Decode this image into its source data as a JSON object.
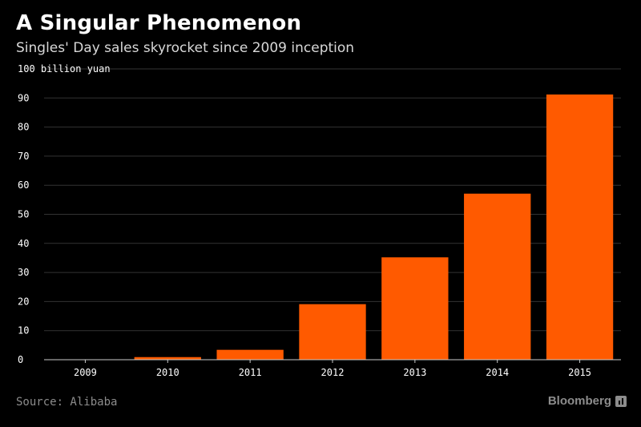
{
  "header": {
    "title": "A Singular Phenomenon",
    "subtitle": "Singles' Day sales skyrocket since 2009 inception"
  },
  "footer": {
    "source": "Source: Alibaba",
    "brand": "Bloomberg",
    "brand_icon": "bloomberg-chart-icon"
  },
  "colors": {
    "background": "#000000",
    "bar": "#ff5a00",
    "grid": "#333333",
    "axis": "#cccccc",
    "tick_text": "#ffffff"
  },
  "chart_data": {
    "type": "bar",
    "title": "A Singular Phenomenon",
    "subtitle": "Singles' Day sales skyrocket since 2009 inception",
    "xlabel": "",
    "ylabel": "billion yuan",
    "categories": [
      "2009",
      "2010",
      "2011",
      "2012",
      "2013",
      "2014",
      "2015"
    ],
    "values": [
      0.05,
      0.9,
      3.4,
      19.1,
      35.2,
      57.1,
      91.2
    ],
    "ylim": [
      0,
      100
    ],
    "yticks": [
      0,
      10,
      20,
      30,
      40,
      50,
      60,
      70,
      80,
      90,
      100
    ],
    "ytick_labels": [
      "0",
      "10",
      "20",
      "30",
      "40",
      "50",
      "60",
      "70",
      "80",
      "90",
      "100 billion yuan"
    ],
    "grid": true,
    "legend": "none"
  }
}
